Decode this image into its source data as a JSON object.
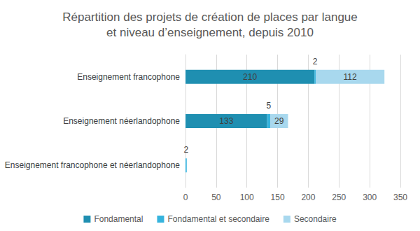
{
  "chart_data": {
    "type": "bar",
    "title": "Répartition des projets de création de places par langue\net niveau d’enseignement, depuis 2010",
    "orientation": "horizontal",
    "stacked": true,
    "data_labels": true,
    "grid": true,
    "legend": "bottom",
    "categories": [
      "Enseignement francophone",
      "Enseignement néerlandophone",
      "Enseignement francophone et néerlandophone"
    ],
    "series": [
      {
        "name": "Fondamental",
        "color": "#1f8fb1",
        "values": [
          210,
          133,
          null
        ]
      },
      {
        "name": "Fondamental et secondaire",
        "color": "#35b3dd",
        "values": [
          2,
          5,
          2
        ]
      },
      {
        "name": "Secondaire",
        "color": "#a8d8ee",
        "values": [
          112,
          29,
          null
        ]
      }
    ],
    "xlim": [
      0,
      350
    ],
    "xticks": [
      0,
      50,
      100,
      150,
      200,
      250,
      300,
      350
    ]
  }
}
